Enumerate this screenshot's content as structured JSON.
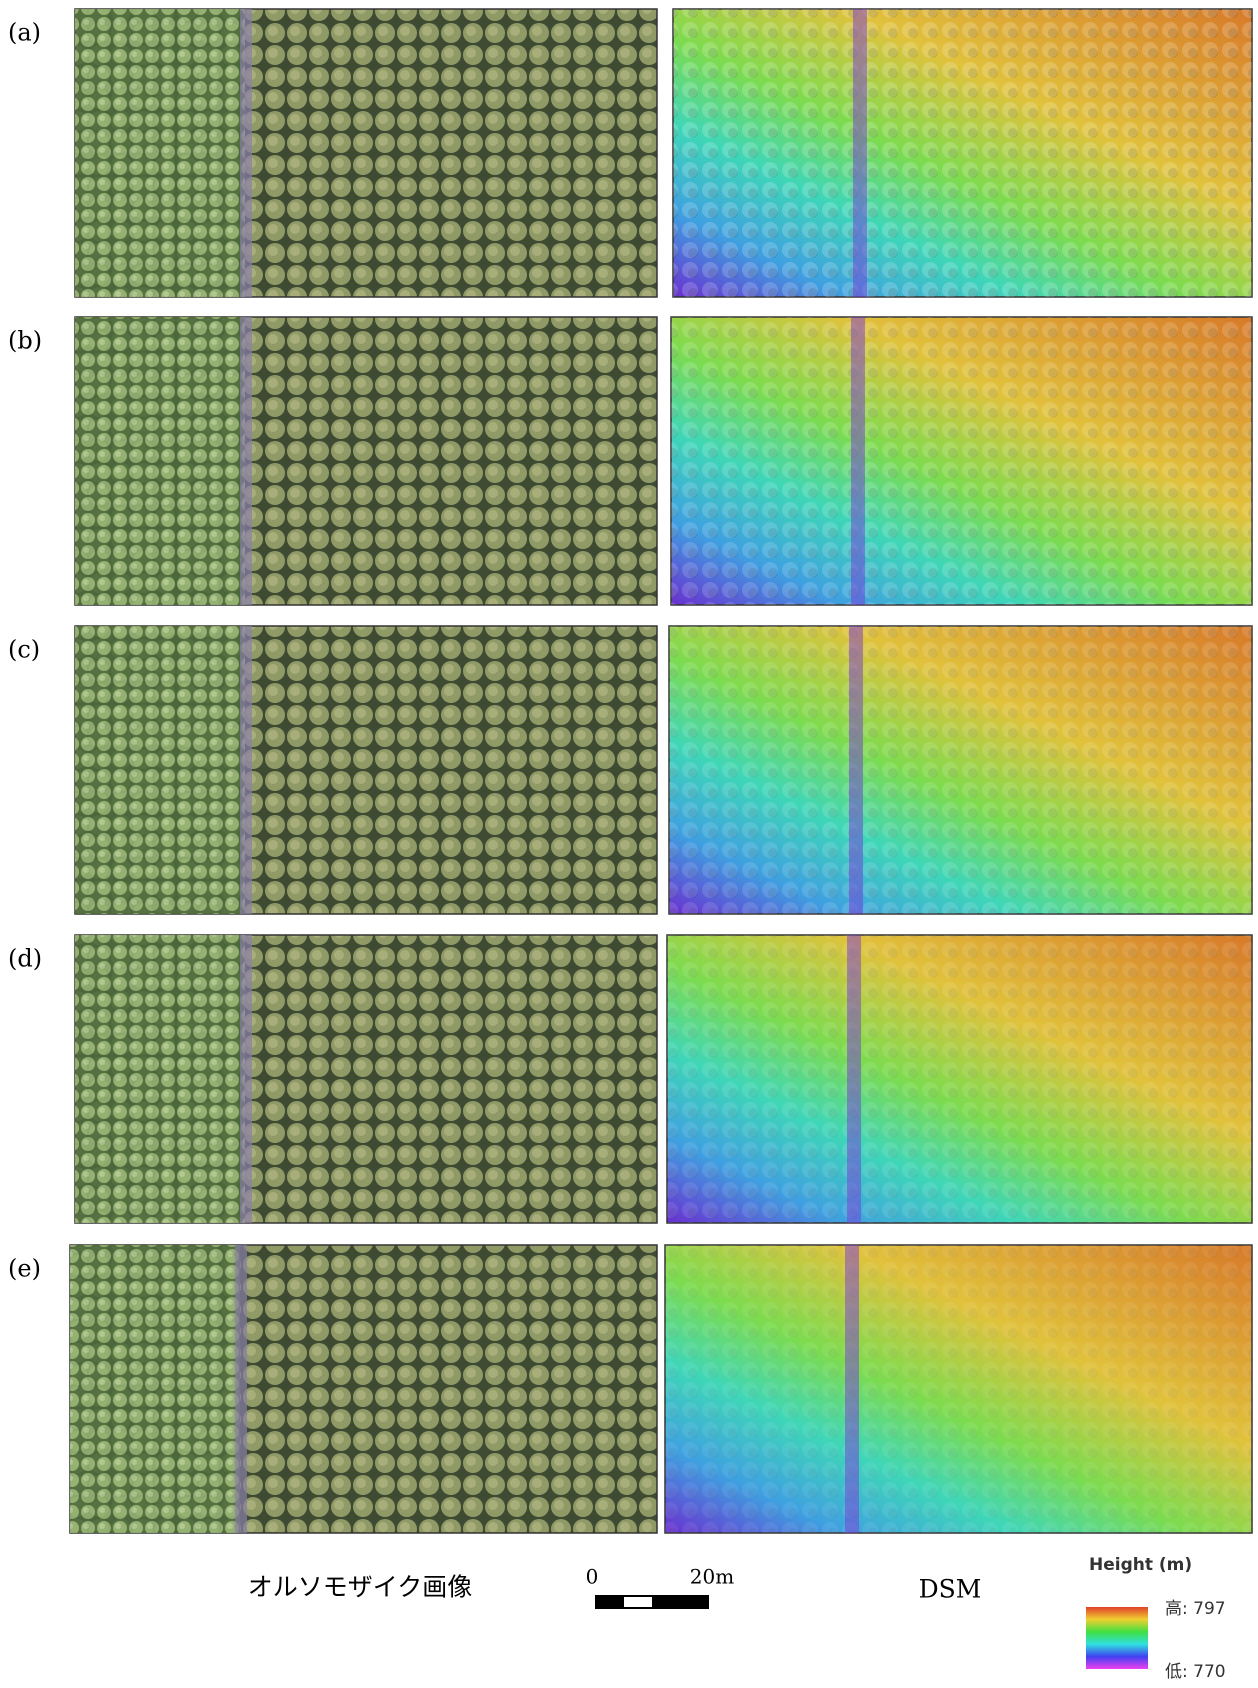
{
  "panels": [
    {
      "label": "(a)"
    },
    {
      "label": "(b)"
    },
    {
      "label": "(c)"
    },
    {
      "label": "(d)"
    },
    {
      "label": "(e)"
    }
  ],
  "captions": {
    "ortho": "オルソモザイク画像",
    "dsm": "DSM"
  },
  "scale_bar": {
    "start": "0",
    "end": "20m"
  },
  "legend": {
    "title": "Height (m)",
    "high": "高: 797",
    "low": "低: 770"
  }
}
